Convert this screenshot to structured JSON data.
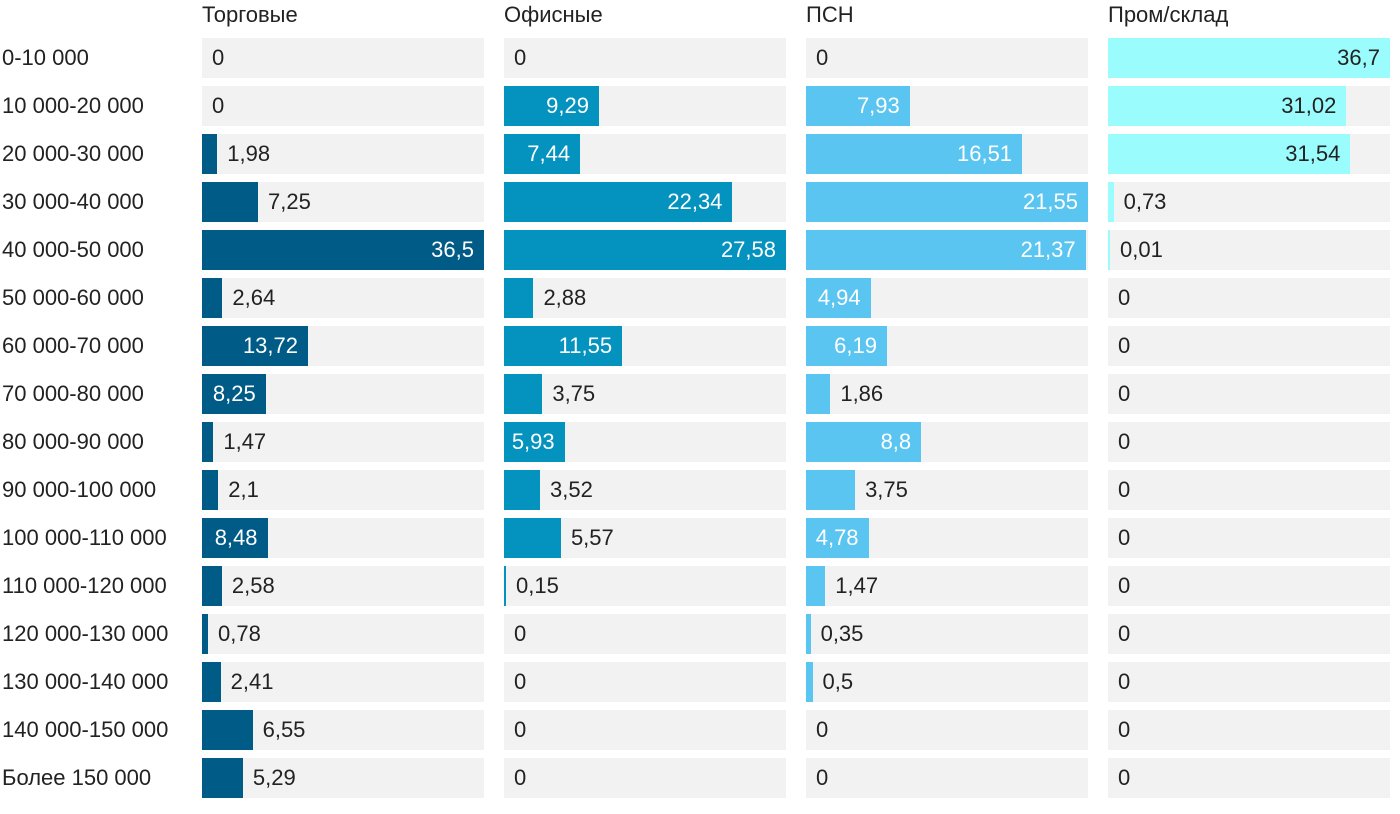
{
  "chart_data": {
    "type": "bar",
    "orientation": "horizontal",
    "layout": "small-multiples",
    "categories": [
      "0-10 000",
      "10 000-20 000",
      "20 000-30 000",
      "30 000-40 000",
      "40 000-50 000",
      "50 000-60 000",
      "60 000-70 000",
      "70 000-80 000",
      "80 000-90 000",
      "90 000-100 000",
      "100 000-110 000",
      "110 000-120 000",
      "120 000-130 000",
      "130 000-140 000",
      "140 000-150 000",
      "Более 150 000"
    ],
    "series": [
      {
        "name": "Торговые",
        "color": "#005b87",
        "value_labels": [
          "0",
          "0",
          "1,98",
          "7,25",
          "36,5",
          "2,64",
          "13,72",
          "8,25",
          "1,47",
          "2,1",
          "8,48",
          "2,58",
          "0,78",
          "2,41",
          "6,55",
          "5,29"
        ],
        "values": [
          0,
          0,
          1.98,
          7.25,
          36.5,
          2.64,
          13.72,
          8.25,
          1.47,
          2.1,
          8.48,
          2.58,
          0.78,
          2.41,
          6.55,
          5.29
        ]
      },
      {
        "name": "Офисные",
        "color": "#0492bf",
        "value_labels": [
          "0",
          "9,29",
          "7,44",
          "22,34",
          "27,58",
          "2,88",
          "11,55",
          "3,75",
          "5,93",
          "3,52",
          "5,57",
          "0,15",
          "0",
          "0",
          "0",
          "0"
        ],
        "values": [
          0,
          9.29,
          7.44,
          22.34,
          27.58,
          2.88,
          11.55,
          3.75,
          5.93,
          3.52,
          5.57,
          0.15,
          0,
          0,
          0,
          0
        ]
      },
      {
        "name": "ПСН",
        "color": "#5bc5f2",
        "value_labels": [
          "0",
          "7,93",
          "16,51",
          "21,55",
          "21,37",
          "4,94",
          "6,19",
          "1,86",
          "8,8",
          "3,75",
          "4,78",
          "1,47",
          "0,35",
          "0,5",
          "0",
          "0"
        ],
        "values": [
          0,
          7.93,
          16.51,
          21.55,
          21.37,
          4.94,
          6.19,
          1.86,
          8.8,
          3.75,
          4.78,
          1.47,
          0.35,
          0.5,
          0,
          0
        ]
      },
      {
        "name": "Пром/склад",
        "color": "#9bfcfd",
        "value_labels": [
          "36,7",
          "31,02",
          "31,54",
          "0,73",
          "0,01",
          "0",
          "0",
          "0",
          "0",
          "0",
          "0",
          "0",
          "0",
          "0",
          "0",
          "0"
        ],
        "values": [
          36.7,
          31.02,
          31.54,
          0.73,
          0.01,
          0,
          0,
          0,
          0,
          0,
          0,
          0,
          0,
          0,
          0,
          0
        ]
      }
    ],
    "xlim_per_panel": [
      [
        0,
        36.5
      ],
      [
        0,
        27.58
      ],
      [
        0,
        21.55
      ],
      [
        0,
        36.7
      ]
    ],
    "title": "",
    "xlabel": "",
    "ylabel": "",
    "legend": "none",
    "grid": false
  }
}
